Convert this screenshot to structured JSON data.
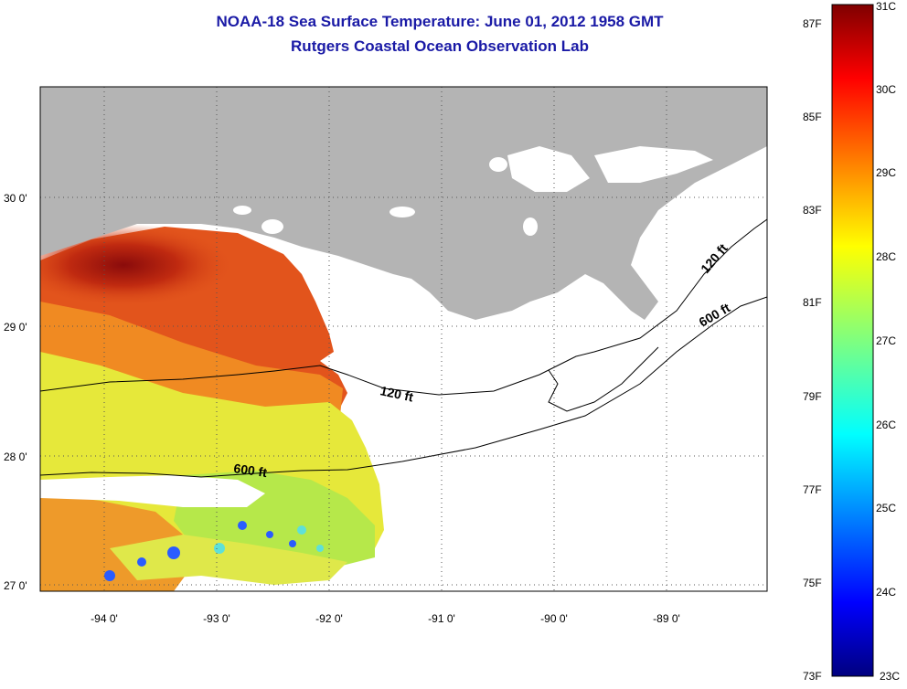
{
  "title": {
    "line1": "NOAA-18 Sea Surface Temperature:  June 01, 2012 1958 GMT",
    "line2": "Rutgers Coastal Ocean Observation Lab"
  },
  "map": {
    "lat_labels": [
      "30 0'",
      "29 0'",
      "28 0'",
      "27 0'"
    ],
    "lon_labels": [
      "-94 0'",
      "-93 0'",
      "-92 0'",
      "-91 0'",
      "-90 0'",
      "-89 0'"
    ],
    "contours": [
      {
        "label": "120 ft",
        "depth_ft": 120
      },
      {
        "label": "600 ft",
        "depth_ft": 600
      },
      {
        "label": "120 ft",
        "depth_ft": 120
      },
      {
        "label": "600 ft",
        "depth_ft": 600
      }
    ],
    "land_color": "#b4b4b4"
  },
  "colorbar": {
    "fahrenheit_labels": [
      "87F",
      "85F",
      "83F",
      "81F",
      "79F",
      "77F",
      "75F",
      "73F"
    ],
    "celsius_labels": [
      "31C",
      "30C",
      "29C",
      "28C",
      "27C",
      "26C",
      "25C",
      "24C",
      "23C"
    ],
    "min_c": 23,
    "max_c": 31,
    "colormap": "jet"
  }
}
